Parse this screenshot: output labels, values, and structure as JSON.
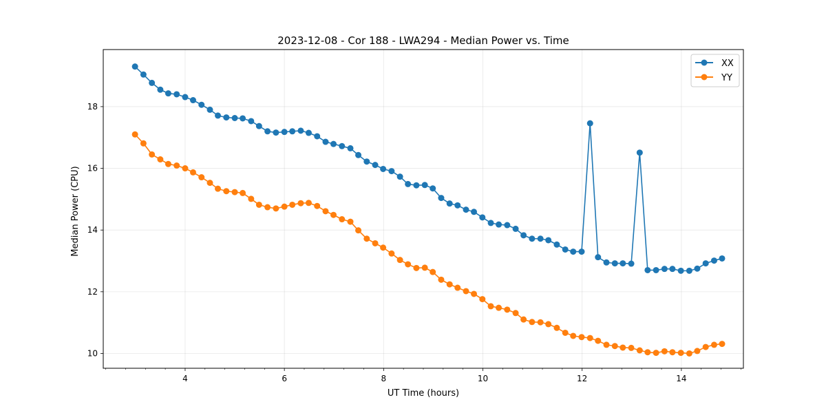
{
  "chart_data": {
    "type": "line",
    "title": "2023-12-08 - Cor 188 - LWA294 - Median Power vs. Time",
    "xlabel": "UT Time (hours)",
    "ylabel": "Median Power (CPU)",
    "xlim": [
      2.35,
      15.25
    ],
    "ylim": [
      9.52,
      19.85
    ],
    "xticks": [
      4,
      6,
      8,
      10,
      12,
      14
    ],
    "yticks": [
      10,
      12,
      14,
      16,
      18
    ],
    "grid": true,
    "legend_position": "top-right",
    "colors": {
      "XX": "#1f77b4",
      "YY": "#ff7f0e"
    },
    "x": [
      2.99,
      3.16,
      3.33,
      3.5,
      3.66,
      3.83,
      4.0,
      4.16,
      4.33,
      4.5,
      4.66,
      4.83,
      5.0,
      5.16,
      5.33,
      5.49,
      5.66,
      5.83,
      6.0,
      6.16,
      6.33,
      6.49,
      6.66,
      6.83,
      6.99,
      7.16,
      7.33,
      7.49,
      7.66,
      7.83,
      7.99,
      8.16,
      8.33,
      8.49,
      8.66,
      8.83,
      8.99,
      9.16,
      9.33,
      9.49,
      9.66,
      9.82,
      9.99,
      10.16,
      10.32,
      10.49,
      10.66,
      10.82,
      10.99,
      11.16,
      11.32,
      11.49,
      11.66,
      11.82,
      11.99,
      12.16,
      12.32,
      12.49,
      12.66,
      12.82,
      12.99,
      13.16,
      13.32,
      13.49,
      13.66,
      13.82,
      13.99,
      14.16,
      14.32,
      14.49,
      14.66,
      14.82
    ],
    "series": [
      {
        "name": "XX",
        "values": [
          19.3,
          19.04,
          18.77,
          18.55,
          18.43,
          18.4,
          18.31,
          18.21,
          18.06,
          17.9,
          17.71,
          17.65,
          17.63,
          17.62,
          17.53,
          17.37,
          17.2,
          17.16,
          17.18,
          17.2,
          17.22,
          17.15,
          17.04,
          16.86,
          16.79,
          16.72,
          16.65,
          16.43,
          16.22,
          16.11,
          15.98,
          15.91,
          15.73,
          15.49,
          15.45,
          15.46,
          15.35,
          15.04,
          14.86,
          14.8,
          14.66,
          14.59,
          14.41,
          14.23,
          14.18,
          14.16,
          14.04,
          13.83,
          13.72,
          13.72,
          13.67,
          13.53,
          13.37,
          13.3,
          13.3,
          17.46,
          13.12,
          12.95,
          12.92,
          12.92,
          12.91,
          16.51,
          12.7,
          12.7,
          12.74,
          12.74,
          12.68,
          12.68,
          12.75,
          12.92,
          13.01,
          13.08
        ]
      },
      {
        "name": "YY",
        "values": [
          17.1,
          16.81,
          16.45,
          16.29,
          16.14,
          16.09,
          16.0,
          15.87,
          15.71,
          15.53,
          15.34,
          15.26,
          15.23,
          15.2,
          15.01,
          14.82,
          14.74,
          14.7,
          14.76,
          14.82,
          14.87,
          14.88,
          14.78,
          14.61,
          14.49,
          14.35,
          14.27,
          13.99,
          13.72,
          13.57,
          13.43,
          13.24,
          13.03,
          12.89,
          12.77,
          12.78,
          12.64,
          12.39,
          12.24,
          12.13,
          12.02,
          11.93,
          11.76,
          11.53,
          11.48,
          11.42,
          11.31,
          11.1,
          11.02,
          11.01,
          10.95,
          10.83,
          10.67,
          10.57,
          10.53,
          10.5,
          10.41,
          10.28,
          10.24,
          10.19,
          10.18,
          10.1,
          10.04,
          10.02,
          10.07,
          10.04,
          10.02,
          10.0,
          10.08,
          10.21,
          10.28,
          10.31
        ]
      }
    ]
  }
}
